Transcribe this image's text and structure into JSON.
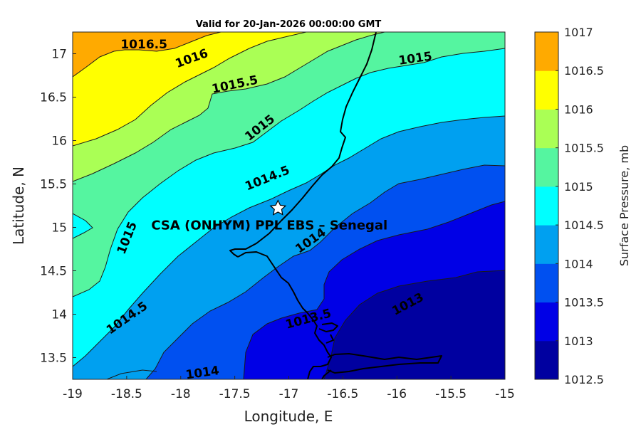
{
  "title": "Valid for 20-Jan-2026 00:00:00 GMT",
  "xlabel": "Longitude, E",
  "ylabel": "Latitude, N",
  "x_ticks": [
    "-19",
    "-18.5",
    "-18",
    "-17.5",
    "-17",
    "-16.5",
    "-16",
    "-15.5",
    "-15"
  ],
  "y_ticks": [
    "13.5",
    "14",
    "14.5",
    "15",
    "15.5",
    "16",
    "16.5",
    "17"
  ],
  "xlim": [
    -19,
    -15
  ],
  "ylim": [
    13.25,
    17.25
  ],
  "colorbar": {
    "label": "Surface Pressure, mb",
    "ticks": [
      "1012.5",
      "1013",
      "1013.5",
      "1014",
      "1014.5",
      "1015",
      "1015.5",
      "1016",
      "1016.5",
      "1017"
    ],
    "colors": [
      "#0000a0",
      "#0000e6",
      "#0050f0",
      "#00a0f0",
      "#00ffff",
      "#55f5a0",
      "#aaff55",
      "#ffff00",
      "#ffaa00",
      "#ff5500"
    ]
  },
  "marker": {
    "label": "CSA (ONHYM) PPL EBS  – Senegal",
    "lon": -17.1,
    "lat": 15.22,
    "icon": "star-icon"
  },
  "contour_labels": [
    {
      "text": "1016.5",
      "lon": -18.34,
      "lat": 17.11,
      "angle": 0
    },
    {
      "text": "1016",
      "lon": -17.9,
      "lat": 16.95,
      "angle": -20
    },
    {
      "text": "1015.5",
      "lon": -17.5,
      "lat": 16.65,
      "angle": -12
    },
    {
      "text": "1015",
      "lon": -17.27,
      "lat": 16.15,
      "angle": -38
    },
    {
      "text": "1015",
      "lon": -15.83,
      "lat": 16.95,
      "angle": -8
    },
    {
      "text": "1014.5",
      "lon": -17.2,
      "lat": 15.57,
      "angle": -22
    },
    {
      "text": "1015",
      "lon": -18.5,
      "lat": 14.88,
      "angle": -68
    },
    {
      "text": "1014",
      "lon": -16.8,
      "lat": 14.85,
      "angle": -35
    },
    {
      "text": "1014.5",
      "lon": -18.5,
      "lat": 13.96,
      "angle": -35
    },
    {
      "text": "1013.5",
      "lon": -16.82,
      "lat": 13.95,
      "angle": -15
    },
    {
      "text": "1013",
      "lon": -15.9,
      "lat": 14.12,
      "angle": -28
    },
    {
      "text": "1014",
      "lon": -17.8,
      "lat": 13.33,
      "angle": -8
    }
  ]
}
